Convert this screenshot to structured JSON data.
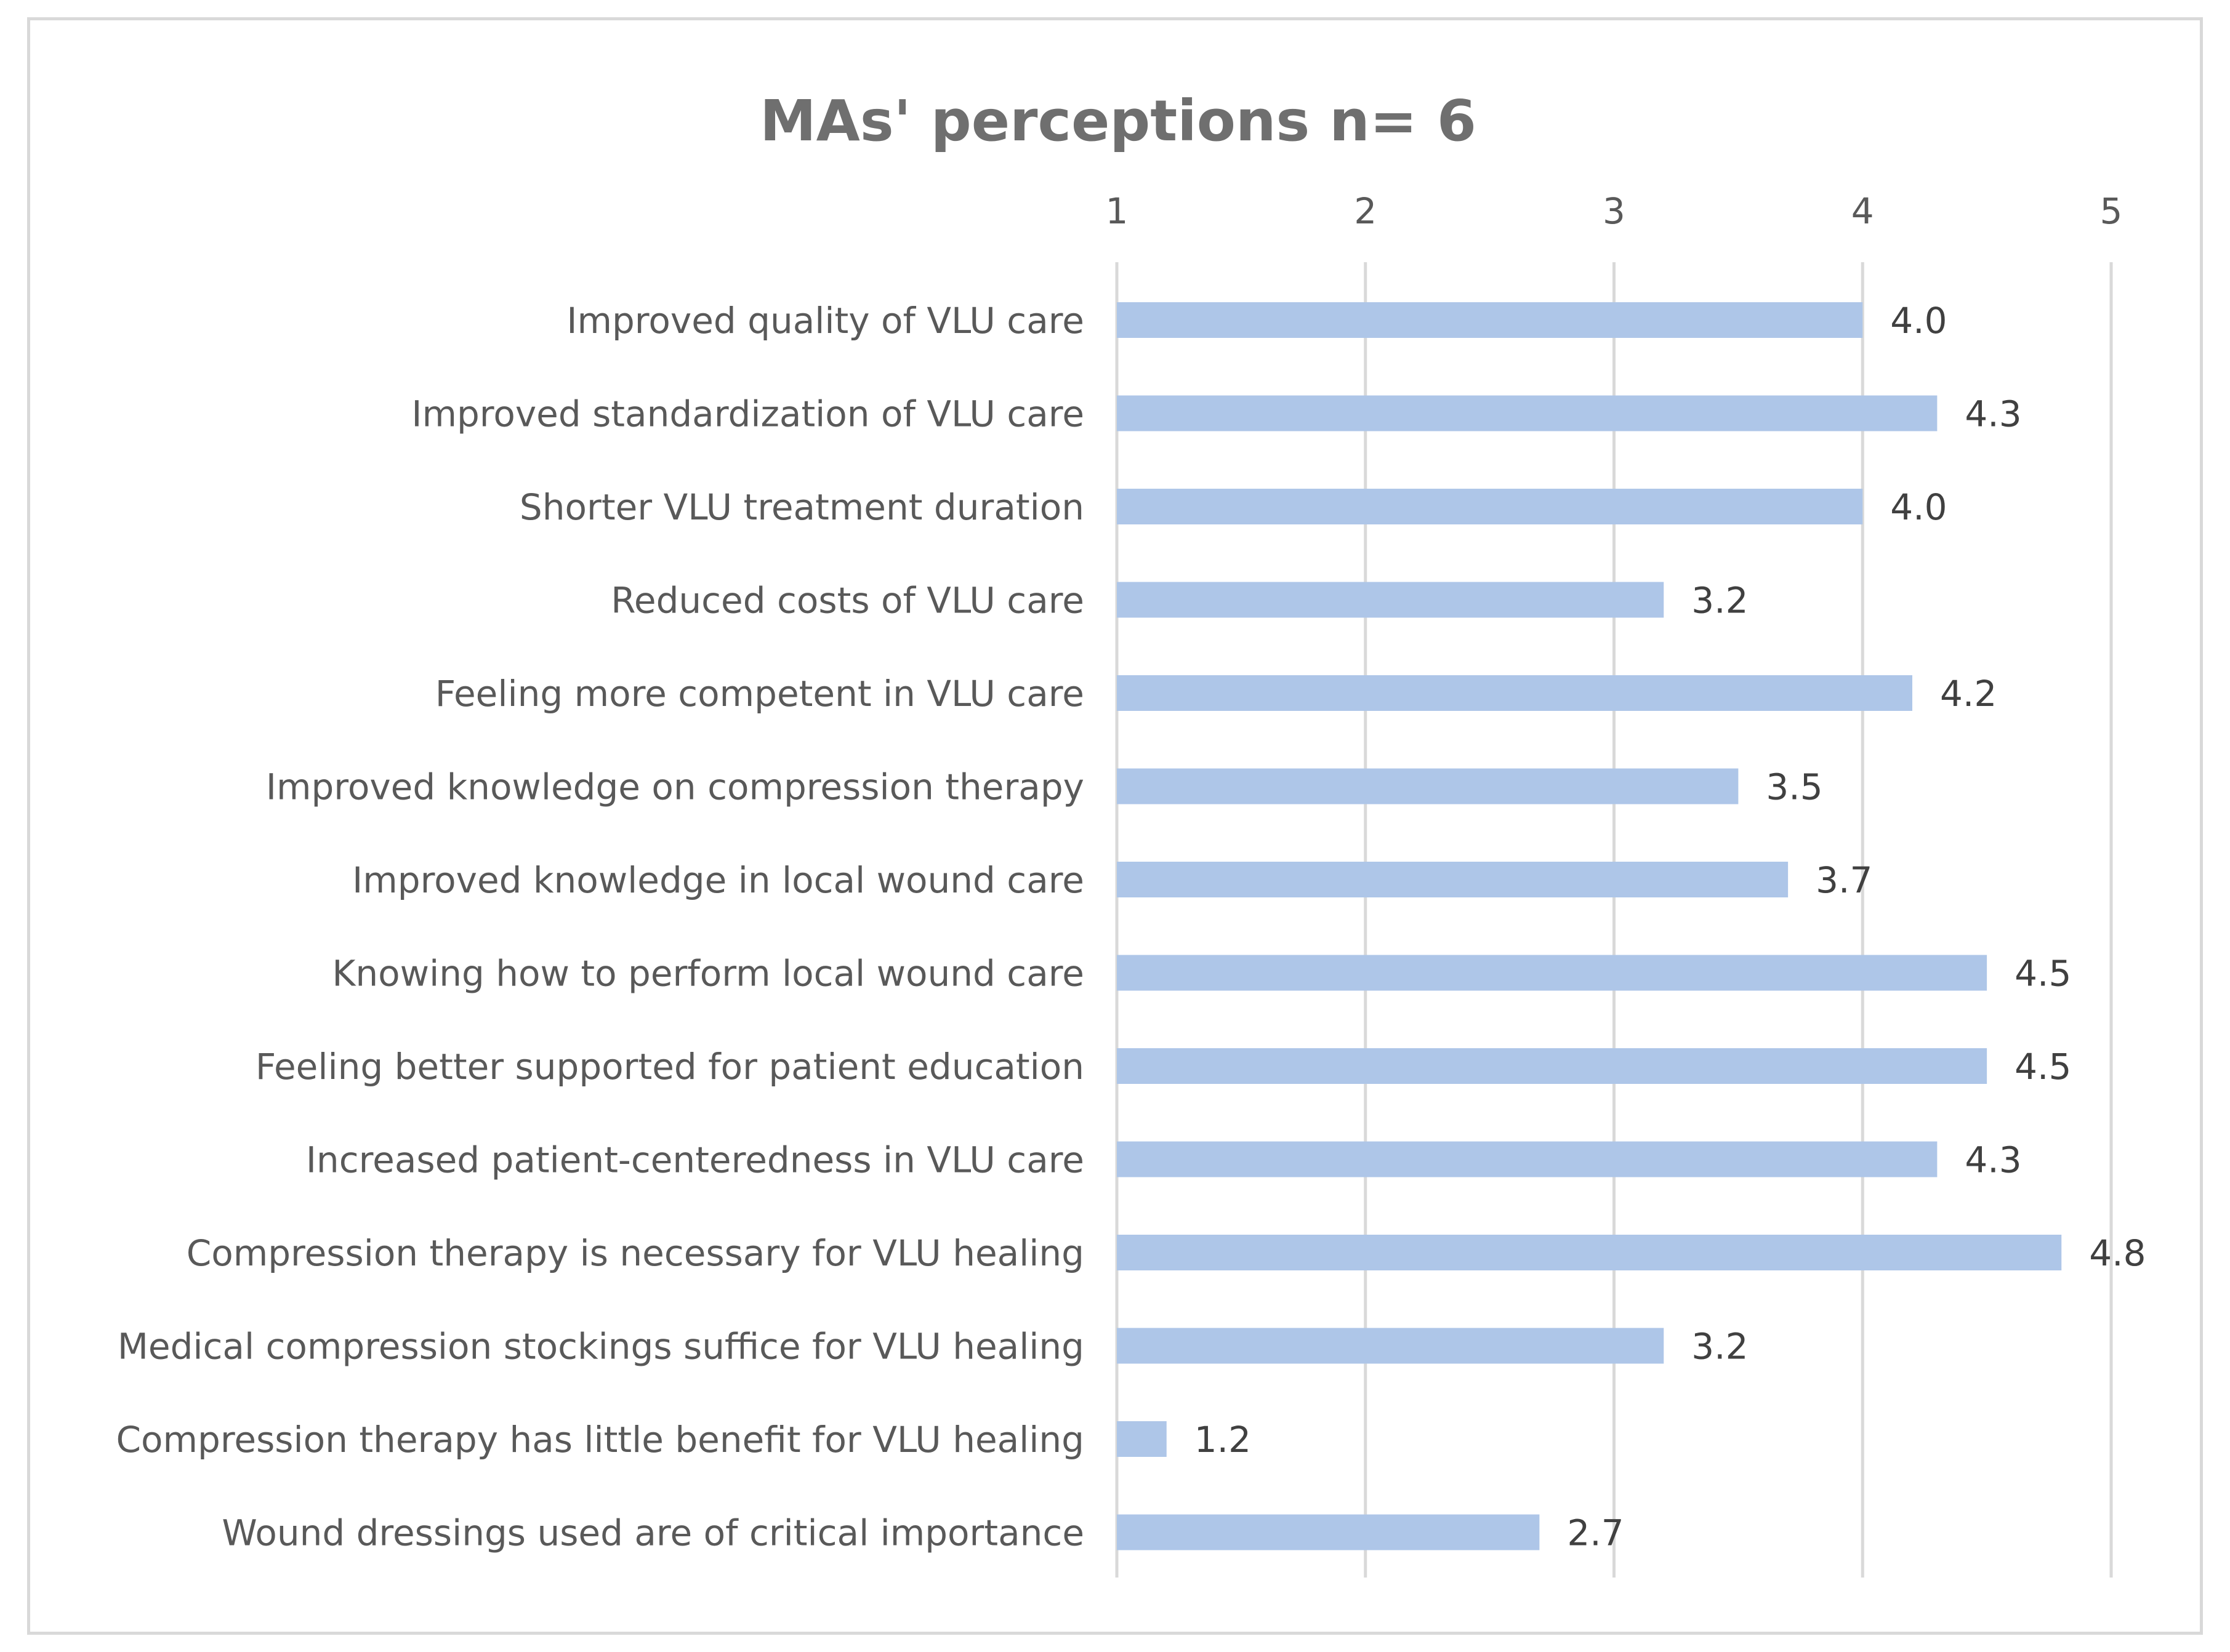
{
  "chart_data": {
    "type": "bar",
    "orientation": "horizontal",
    "title": "MAs' perceptions n= 6",
    "xlabel": "",
    "ylabel": "",
    "xlim": [
      1,
      5
    ],
    "ticks": [
      "1",
      "2",
      "3",
      "4",
      "5"
    ],
    "tick_values": [
      1,
      2,
      3,
      4,
      5
    ],
    "axis_position": "top",
    "grid": true,
    "legend": "none",
    "bar_color": "#aec6e8",
    "categories": [
      "Improved quality of VLU care",
      "Improved standardization of VLU care",
      "Shorter VLU treatment duration",
      "Reduced costs of VLU care",
      "Feeling more competent in VLU care",
      "Improved knowledge on compression therapy",
      "Improved knowledge in local wound care",
      "Knowing how to perform local wound care",
      "Feeling better supported for patient education",
      "Increased patient-centeredness in VLU care",
      "Compression therapy is necessary for VLU healing",
      "Medical compression stockings suffice for VLU healing",
      "Compression therapy has little benefit for VLU healing",
      "Wound dressings used are of critical importance"
    ],
    "values": [
      4.0,
      4.3,
      4.0,
      3.2,
      4.2,
      3.5,
      3.7,
      4.5,
      4.5,
      4.3,
      4.8,
      3.2,
      1.2,
      2.7
    ],
    "value_labels": [
      "4.0",
      "4.3",
      "4.0",
      "3.2",
      "4.2",
      "3.5",
      "3.7",
      "4.5",
      "4.5",
      "4.3",
      "4.8",
      "3.2",
      "1.2",
      "2.7"
    ]
  }
}
